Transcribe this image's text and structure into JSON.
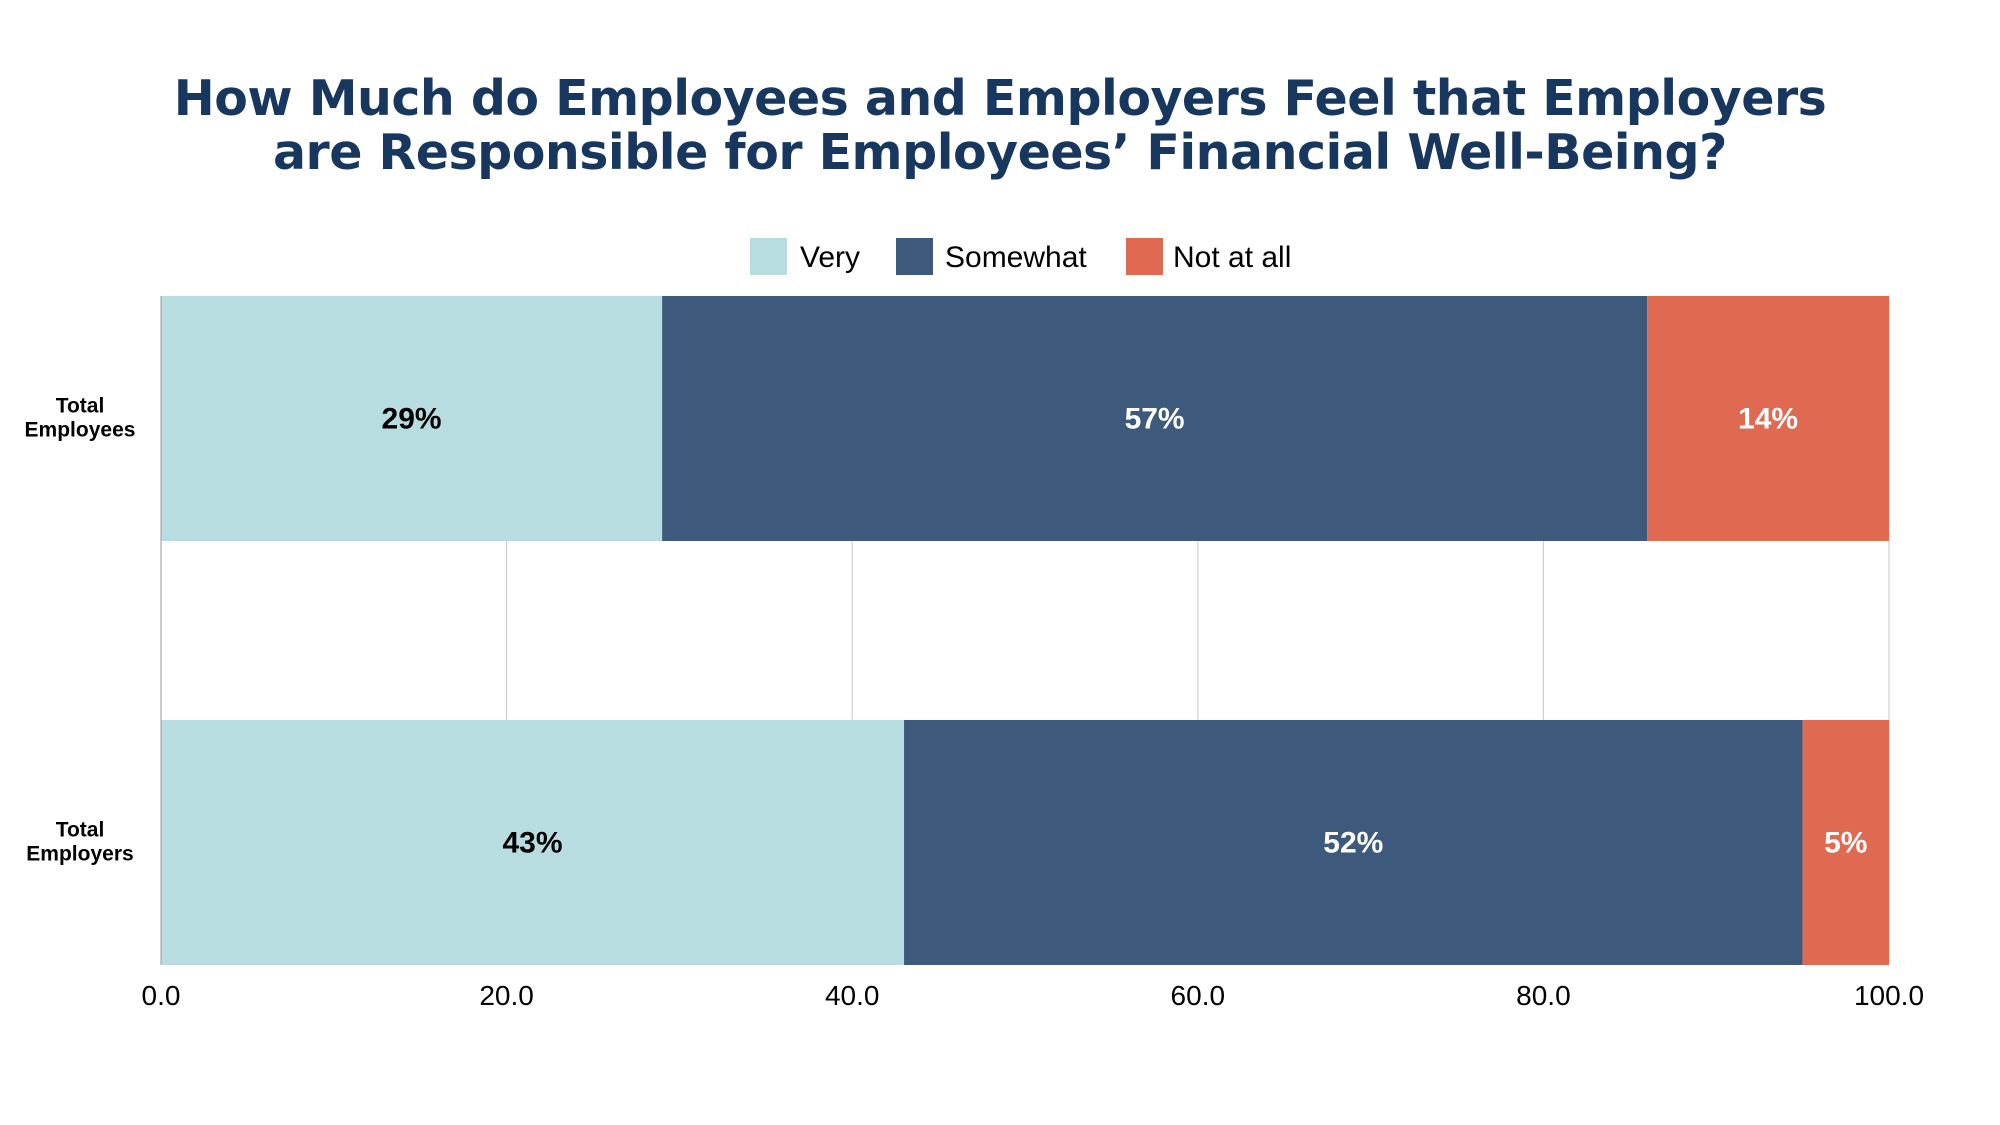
{
  "chart_data": {
    "type": "bar",
    "orientation": "horizontal",
    "stacked": true,
    "title_lines": [
      "How Much do Employees and Employers Feel that Employers",
      "are Responsible for Employees’ Financial Well-Being?"
    ],
    "categories": [
      [
        "Total",
        "Employees"
      ],
      [
        "Total",
        "Employers"
      ]
    ],
    "series": [
      {
        "name": "Very",
        "values": [
          29,
          43
        ],
        "labels": [
          "29%",
          "43%"
        ],
        "color": "#b7dde1",
        "label_color": "#000000"
      },
      {
        "name": "Somewhat",
        "values": [
          57,
          52
        ],
        "labels": [
          "57%",
          "52%"
        ],
        "color": "#3d597b",
        "label_color": "#ffffff"
      },
      {
        "name": "Not at all",
        "values": [
          14,
          5
        ],
        "labels": [
          "14%",
          "5%"
        ],
        "color": "#e06952",
        "label_color": "#ffffff"
      }
    ],
    "xlim": [
      0,
      100
    ],
    "xticks": [
      "0.0",
      "20.0",
      "40.0",
      "60.0",
      "80.0",
      "100.0"
    ],
    "xtick_values": [
      0,
      20,
      40,
      60,
      80,
      100
    ],
    "xlabel": "",
    "ylabel": "",
    "grid": true,
    "legend_position": "top-center"
  },
  "colors": {
    "title": "#17375e",
    "grid": "#d0d0d0"
  }
}
